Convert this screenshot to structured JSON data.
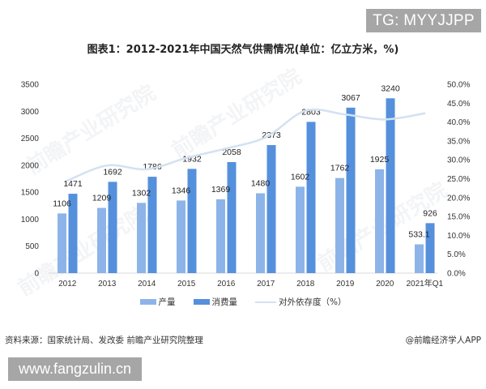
{
  "badges": {
    "tg": "TG: MYYJJPP",
    "website": "www.fangzulin.cn"
  },
  "title": "图表1：2012-2021年中国天然气供需情况(单位：亿立方米，%)",
  "legend": {
    "production": "产量",
    "consumption": "消费量",
    "dependency": "对外依存度（%）"
  },
  "footer": {
    "source": "资料来源：国家统计局、发改委 前瞻产业研究院整理",
    "credit": "@前瞻经济学人APP"
  },
  "watermark": "前瞻产业研究院",
  "colors": {
    "production": "#8db4e8",
    "consumption": "#5590dc",
    "dependency": "#d3e1f2",
    "axis": "#d9d9d9",
    "badge_bg": "#a6a6a6"
  },
  "chart_data": {
    "type": "bar",
    "title": "图表1：2012-2021年中国天然气供需情况(单位：亿立方米，%)",
    "xlabel": "",
    "ylabel": "亿立方米",
    "y2label": "%",
    "categories": [
      "2012",
      "2013",
      "2014",
      "2015",
      "2016",
      "2017",
      "2018",
      "2019",
      "2020",
      "2021年Q1"
    ],
    "series": [
      {
        "name": "产量",
        "type": "bar",
        "axis": "left",
        "values": [
          1106,
          1209,
          1302,
          1346,
          1369,
          1480,
          1602,
          1762,
          1925,
          533.1
        ]
      },
      {
        "name": "消费量",
        "type": "bar",
        "axis": "left",
        "values": [
          1471,
          1692,
          1786,
          1932,
          2058,
          2373,
          2803,
          3067,
          3240,
          926
        ]
      },
      {
        "name": "对外依存度（%）",
        "type": "line",
        "axis": "right",
        "values": [
          24.5,
          28.5,
          27.5,
          30.5,
          33.0,
          36.0,
          43.0,
          42.0,
          40.7,
          42.3
        ]
      }
    ],
    "ylim": [
      0,
      3500
    ],
    "yticks": [
      "0",
      "500",
      "1000",
      "1500",
      "2000",
      "2500",
      "3000",
      "3500"
    ],
    "y2lim": [
      0,
      50
    ],
    "y2ticks": [
      "0.0%",
      "5.0%",
      "10.0%",
      "15.0%",
      "20.0%",
      "25.0%",
      "30.0%",
      "35.0%",
      "40.0%",
      "45.0%",
      "50.0%"
    ],
    "data_labels": true,
    "grid": false,
    "legend_position": "bottom"
  }
}
